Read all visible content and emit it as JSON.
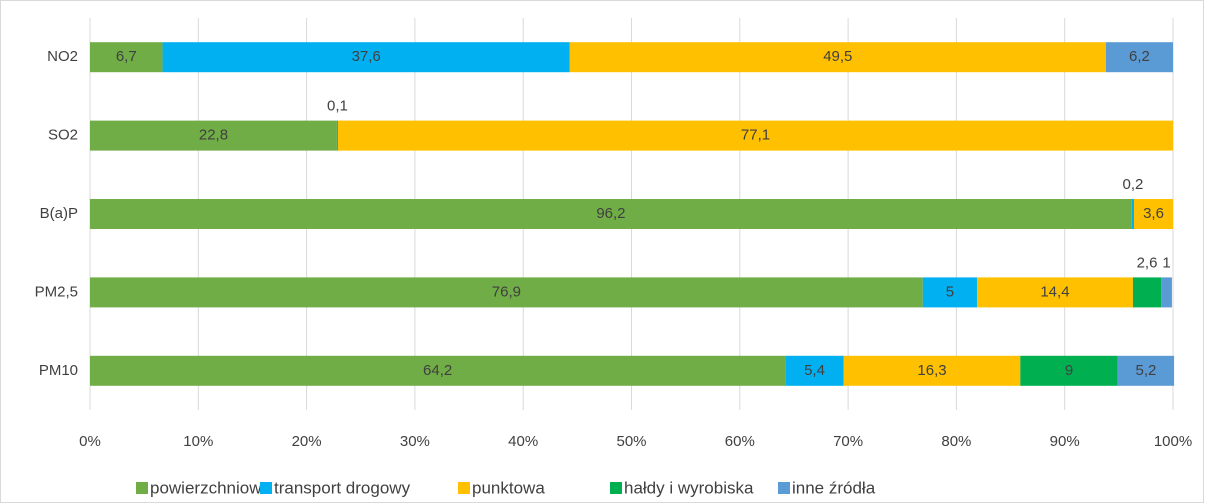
{
  "chart_data": {
    "type": "bar",
    "orientation": "horizontal",
    "stacked": true,
    "categories": [
      "NO2",
      "SO2",
      "B(a)P",
      "PM2,5",
      "PM10"
    ],
    "series": [
      {
        "name": "powierzchniowa",
        "color": "#70ad47",
        "values": [
          6.7,
          22.8,
          96.2,
          76.9,
          64.2
        ],
        "value_labels": [
          "6,7",
          "22,8",
          "96,2",
          "76,9",
          "64,2"
        ]
      },
      {
        "name": "transport drogowy",
        "color": "#00b0f0",
        "values": [
          37.6,
          0.1,
          0.2,
          5,
          5.4
        ],
        "value_labels": [
          "37,6",
          "0,1",
          "0,2",
          "5",
          "5,4"
        ]
      },
      {
        "name": "punktowa",
        "color": "#ffc000",
        "values": [
          49.5,
          77.1,
          3.6,
          14.4,
          16.3
        ],
        "value_labels": [
          "49,5",
          "77,1",
          "3,6",
          "14,4",
          "16,3"
        ]
      },
      {
        "name": "hałdy i wyrobiska",
        "color": "#00b050",
        "values": [
          null,
          null,
          null,
          2.6,
          9
        ],
        "value_labels": [
          null,
          null,
          null,
          "2,6",
          "9"
        ]
      },
      {
        "name": "inne źródła",
        "color": "#5b9bd5",
        "values": [
          6.2,
          null,
          null,
          1,
          5.2
        ],
        "value_labels": [
          "6,2",
          null,
          null,
          "1",
          "5,2"
        ]
      }
    ],
    "xlim": [
      0,
      100
    ],
    "xticks": [
      {
        "value": 0,
        "label": "0%"
      },
      {
        "value": 10,
        "label": "10%"
      },
      {
        "value": 20,
        "label": "20%"
      },
      {
        "value": 30,
        "label": "30%"
      },
      {
        "value": 40,
        "label": "40%"
      },
      {
        "value": 50,
        "label": "50%"
      },
      {
        "value": 60,
        "label": "60%"
      },
      {
        "value": 70,
        "label": "70%"
      },
      {
        "value": 80,
        "label": "80%"
      },
      {
        "value": 90,
        "label": "90%"
      },
      {
        "value": 100,
        "label": "100%"
      }
    ],
    "grid": true,
    "legend": "bottom"
  }
}
